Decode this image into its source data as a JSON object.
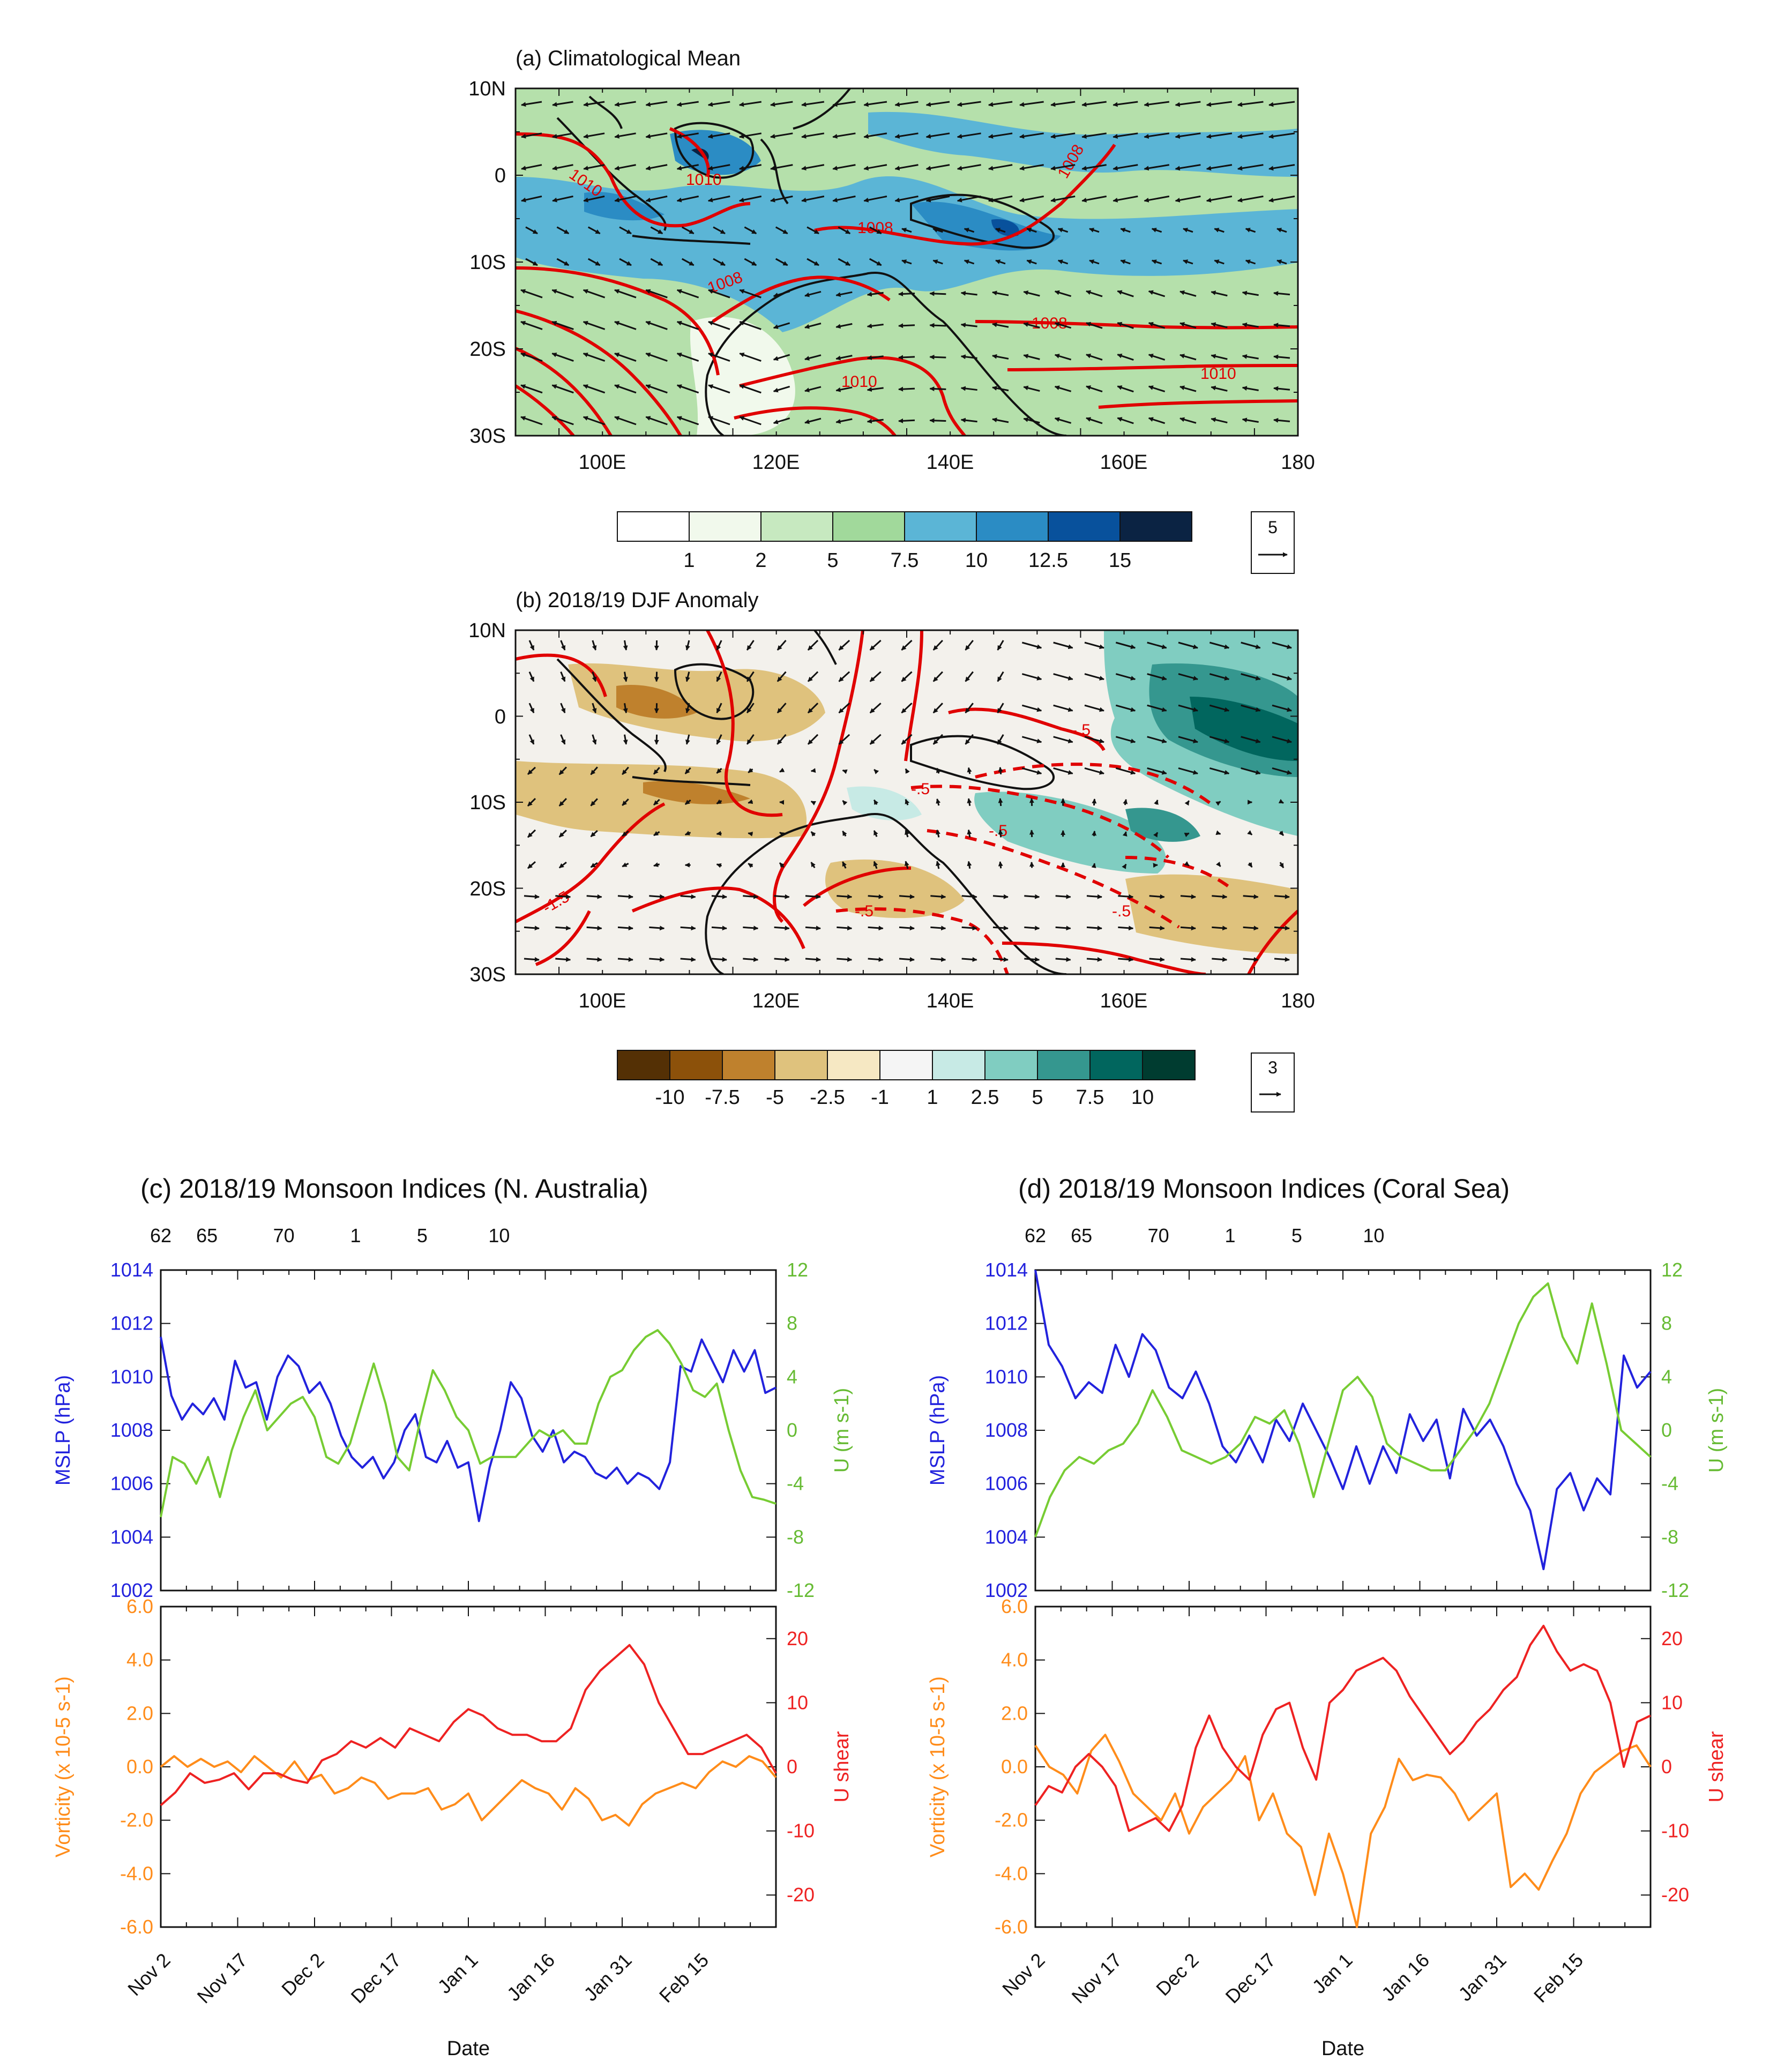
{
  "figure": {
    "map_a": {
      "title": "(a) Climatological Mean",
      "lat_labels": [
        "10N",
        "0",
        "10S",
        "20S",
        "30S"
      ],
      "lon_labels": [
        "100E",
        "120E",
        "140E",
        "160E",
        "180"
      ],
      "colorbar_ticks": [
        "1",
        "2",
        "5",
        "7.5",
        "10",
        "12.5",
        "15"
      ],
      "colorbar_colors": [
        "#ffffff",
        "#f1f9ec",
        "#c7e9c0",
        "#a1d99b",
        "#5bb5d6",
        "#2b8cc4",
        "#08519c",
        "#0b2343"
      ],
      "ref_vector": "5",
      "contour_labels": [
        "1010",
        "1010",
        "1008",
        "1008",
        "1008",
        "1008",
        "1010",
        "1010"
      ]
    },
    "map_b": {
      "title": "(b) 2018/19 DJF Anomaly",
      "lat_labels": [
        "10N",
        "0",
        "10S",
        "20S",
        "30S"
      ],
      "lon_labels": [
        "100E",
        "120E",
        "140E",
        "160E",
        "180"
      ],
      "colorbar_ticks": [
        "-10",
        "-7.5",
        "-5",
        "-2.5",
        "-1",
        "1",
        "2.5",
        "5",
        "7.5",
        "10"
      ],
      "colorbar_colors": [
        "#543005",
        "#8c510a",
        "#bf812d",
        "#dfc27d",
        "#f6e8c3",
        "#f5f5f5",
        "#c7eae5",
        "#80cdc1",
        "#35978f",
        "#01665e",
        "#003c30"
      ],
      "ref_vector": "3",
      "contour_labels": [
        "-.5",
        "-.5",
        "-.5",
        "-.5",
        "-.5",
        "-1.5"
      ]
    }
  },
  "chart_data": [
    {
      "type": "line",
      "title": "(c) 2018/19 Monsoon Indices (N. Australia)",
      "top_axis_labels": [
        "62",
        "65",
        "70",
        "1",
        "5",
        "10"
      ],
      "xlabel": "Date",
      "xticks": [
        "Nov 2",
        "Nov 17",
        "Dec 2",
        "Dec 17",
        "Jan 1",
        "Jan 16",
        "Jan 31",
        "Feb 15"
      ],
      "x_day_range": [
        0,
        120
      ],
      "upper": {
        "left_label": "MSLP (hPa)",
        "left_ylim": [
          1002,
          1014
        ],
        "left_ticks": [
          "1014",
          "1012",
          "1010",
          "1008",
          "1006",
          "1004",
          "1002"
        ],
        "right_label": "U (m s-1)",
        "right_ylim": [
          -12,
          12
        ],
        "right_ticks": [
          "12",
          "8",
          "4",
          "0",
          "-4",
          "-8",
          "-12"
        ],
        "series": [
          {
            "name": "MSLP",
            "axis": "left",
            "color": "#2222dd",
            "values": [
              1011.5,
              1009.3,
              1008.4,
              1009.0,
              1008.6,
              1009.2,
              1008.4,
              1010.6,
              1009.6,
              1009.8,
              1008.4,
              1010.0,
              1010.8,
              1010.4,
              1009.4,
              1009.8,
              1009.0,
              1007.8,
              1007.0,
              1006.6,
              1007.0,
              1006.2,
              1006.8,
              1008.0,
              1008.6,
              1007.0,
              1006.8,
              1007.6,
              1006.6,
              1006.8,
              1004.6,
              1006.6,
              1008.0,
              1009.8,
              1009.2,
              1007.8,
              1007.2,
              1008.0,
              1006.8,
              1007.2,
              1007.0,
              1006.4,
              1006.2,
              1006.6,
              1006.0,
              1006.4,
              1006.2,
              1005.8,
              1006.8,
              1010.4,
              1010.2,
              1011.4,
              1010.6,
              1009.8,
              1011.0,
              1010.2,
              1011.0,
              1009.4,
              1009.6
            ]
          },
          {
            "name": "U",
            "axis": "right",
            "color": "#77cc33",
            "values": [
              -6.5,
              -2.0,
              -2.5,
              -4.0,
              -2.0,
              -5.0,
              -1.5,
              1.0,
              3.0,
              0.0,
              1.0,
              2.0,
              2.5,
              1.0,
              -2.0,
              -2.5,
              -1.0,
              2.0,
              5.0,
              2.0,
              -2.0,
              -3.0,
              1.0,
              4.5,
              3.0,
              1.0,
              0.0,
              -2.5,
              -2.0,
              -2.0,
              -2.0,
              -1.0,
              0.0,
              -0.5,
              0.0,
              -1.0,
              -1.0,
              2.0,
              4.0,
              4.5,
              6.0,
              7.0,
              7.5,
              6.5,
              5.0,
              3.0,
              2.5,
              3.5,
              0.0,
              -3.0,
              -5.0,
              -5.2,
              -5.5
            ]
          }
        ]
      },
      "lower": {
        "left_label": "Vorticity (x 10-5 s-1)",
        "left_ylim": [
          -6,
          6
        ],
        "left_ticks": [
          "6.0",
          "4.0",
          "2.0",
          "0.0",
          "-2.0",
          "-4.0",
          "-6.0"
        ],
        "right_label": "U shear",
        "right_ylim": [
          -25,
          25
        ],
        "right_ticks": [
          "20",
          "10",
          "0",
          "-10",
          "-20"
        ],
        "series": [
          {
            "name": "Vorticity",
            "axis": "left",
            "color": "#ff8c1a",
            "values": [
              0.0,
              0.4,
              0.0,
              0.3,
              0.0,
              0.2,
              -0.2,
              0.4,
              0.0,
              -0.4,
              0.2,
              -0.5,
              -0.3,
              -1.0,
              -0.8,
              -0.4,
              -0.6,
              -1.2,
              -1.0,
              -1.0,
              -0.8,
              -1.6,
              -1.4,
              -1.0,
              -2.0,
              -1.5,
              -1.0,
              -0.5,
              -0.8,
              -1.0,
              -1.6,
              -0.8,
              -1.2,
              -2.0,
              -1.8,
              -2.2,
              -1.4,
              -1.0,
              -0.8,
              -0.6,
              -0.8,
              -0.2,
              0.2,
              0.0,
              0.4,
              0.2,
              -0.4
            ]
          },
          {
            "name": "U shear",
            "axis": "right",
            "color": "#ee2222",
            "values": [
              -6.0,
              -4.0,
              -1.0,
              -2.5,
              -2.0,
              -1.0,
              -3.5,
              -1.0,
              -1.0,
              -2.0,
              -2.5,
              1.0,
              2.0,
              4.0,
              3.0,
              4.5,
              3.0,
              6.0,
              5.0,
              4.0,
              7.0,
              9.0,
              8.0,
              6.0,
              5.0,
              5.0,
              4.0,
              4.0,
              6.0,
              12.0,
              15.0,
              17.0,
              19.0,
              16.0,
              10.0,
              6.0,
              2.0,
              2.0,
              3.0,
              4.0,
              5.0,
              3.0,
              -1.0
            ]
          }
        ]
      }
    },
    {
      "type": "line",
      "title": "(d) 2018/19 Monsoon Indices (Coral Sea)",
      "top_axis_labels": [
        "62",
        "65",
        "70",
        "1",
        "5",
        "10"
      ],
      "xlabel": "Date",
      "xticks": [
        "Nov 2",
        "Nov 17",
        "Dec 2",
        "Dec 17",
        "Jan 1",
        "Jan 16",
        "Jan 31",
        "Feb 15"
      ],
      "x_day_range": [
        0,
        120
      ],
      "upper": {
        "left_label": "MSLP (hPa)",
        "left_ylim": [
          1002,
          1014
        ],
        "left_ticks": [
          "1014",
          "1012",
          "1010",
          "1008",
          "1006",
          "1004",
          "1002"
        ],
        "right_label": "U (m s-1)",
        "right_ylim": [
          -12,
          12
        ],
        "right_ticks": [
          "12",
          "8",
          "4",
          "0",
          "-4",
          "-8",
          "-12"
        ],
        "series": [
          {
            "name": "MSLP",
            "axis": "left",
            "color": "#2222dd",
            "values": [
              1014.0,
              1011.2,
              1010.4,
              1009.2,
              1009.8,
              1009.4,
              1011.2,
              1010.0,
              1011.6,
              1011.0,
              1009.6,
              1009.2,
              1010.2,
              1009.0,
              1007.4,
              1006.8,
              1007.8,
              1006.8,
              1008.4,
              1007.6,
              1009.0,
              1008.0,
              1007.0,
              1005.8,
              1007.4,
              1006.0,
              1007.4,
              1006.4,
              1008.6,
              1007.6,
              1008.4,
              1006.2,
              1008.8,
              1007.8,
              1008.4,
              1007.4,
              1006.0,
              1005.0,
              1002.8,
              1005.8,
              1006.4,
              1005.0,
              1006.2,
              1005.6,
              1010.8,
              1009.6,
              1010.2
            ]
          },
          {
            "name": "U",
            "axis": "right",
            "color": "#77cc33",
            "values": [
              -8.0,
              -5.0,
              -3.0,
              -2.0,
              -2.5,
              -1.5,
              -1.0,
              0.5,
              3.0,
              1.0,
              -1.5,
              -2.0,
              -2.5,
              -2.0,
              -1.0,
              1.0,
              0.5,
              1.5,
              -1.0,
              -5.0,
              -1.0,
              3.0,
              4.0,
              2.5,
              -1.0,
              -2.0,
              -2.5,
              -3.0,
              -3.0,
              -1.5,
              0.0,
              2.0,
              5.0,
              8.0,
              10.0,
              11.0,
              7.0,
              5.0,
              9.5,
              5.0,
              0.0,
              -1.0,
              -2.0
            ]
          }
        ]
      },
      "lower": {
        "left_label": "Vorticity (x 10-5 s-1)",
        "left_ylim": [
          -6,
          6
        ],
        "left_ticks": [
          "6.0",
          "4.0",
          "2.0",
          "0.0",
          "-2.0",
          "-4.0",
          "-6.0"
        ],
        "right_label": "U shear",
        "right_ylim": [
          -25,
          25
        ],
        "right_ticks": [
          "20",
          "10",
          "0",
          "-10",
          "-20"
        ],
        "series": [
          {
            "name": "Vorticity",
            "axis": "left",
            "color": "#ff8c1a",
            "values": [
              0.8,
              0.0,
              -0.3,
              -1.0,
              0.6,
              1.2,
              0.2,
              -1.0,
              -1.5,
              -2.0,
              -1.0,
              -2.5,
              -1.5,
              -1.0,
              -0.5,
              0.4,
              -2.0,
              -1.0,
              -2.5,
              -3.0,
              -4.8,
              -2.5,
              -4.0,
              -6.0,
              -2.5,
              -1.5,
              0.3,
              -0.5,
              -0.3,
              -0.4,
              -1.0,
              -2.0,
              -1.5,
              -1.0,
              -4.5,
              -4.0,
              -4.6,
              -3.5,
              -2.5,
              -1.0,
              -0.2,
              0.2,
              0.6,
              0.8,
              0.0
            ]
          },
          {
            "name": "U shear",
            "axis": "right",
            "color": "#ee2222",
            "values": [
              -6.0,
              -3.0,
              -4.0,
              0.0,
              2.0,
              0.0,
              -3.0,
              -10.0,
              -9.0,
              -8.0,
              -10.0,
              -6.0,
              3.0,
              8.0,
              3.0,
              0.0,
              -2.0,
              5.0,
              9.0,
              10.0,
              3.0,
              -2.0,
              10.0,
              12.0,
              15.0,
              16.0,
              17.0,
              15.0,
              11.0,
              8.0,
              5.0,
              2.0,
              4.0,
              7.0,
              9.0,
              12.0,
              14.0,
              19.0,
              22.0,
              18.0,
              15.0,
              16.0,
              15.0,
              10.0,
              0.0,
              7.0,
              8.0
            ]
          }
        ]
      }
    }
  ]
}
